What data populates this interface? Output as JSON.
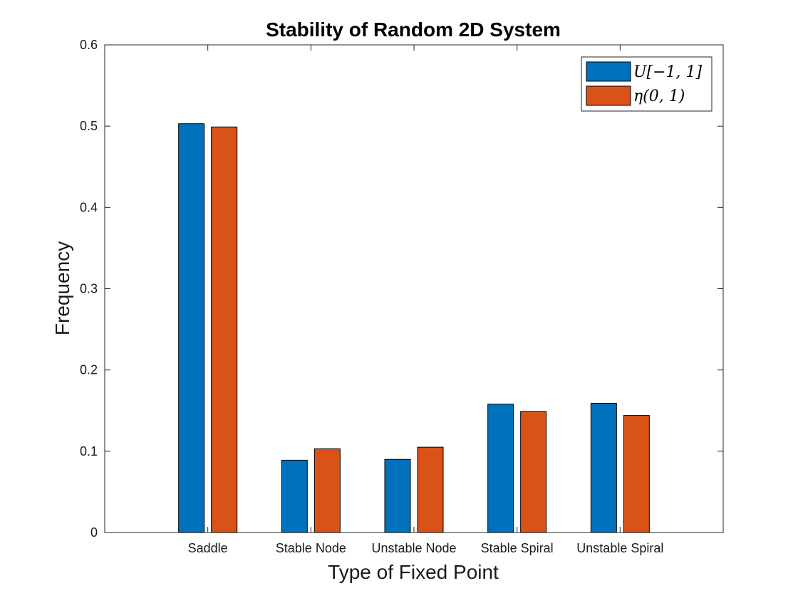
{
  "chart_data": {
    "type": "bar",
    "title": "Stability of Random 2D System",
    "xlabel": "Type of Fixed Point",
    "ylabel": "Frequency",
    "categories": [
      "Saddle",
      "Stable Node",
      "Unstable Node",
      "Stable Spiral",
      "Unstable Spiral"
    ],
    "series": [
      {
        "name": "U[−1, 1]",
        "color": "#0072BD",
        "values": [
          0.503,
          0.089,
          0.09,
          0.158,
          0.159
        ]
      },
      {
        "name": "η(0, 1)",
        "color": "#D95319",
        "values": [
          0.499,
          0.103,
          0.105,
          0.149,
          0.144
        ]
      }
    ],
    "ylim": [
      0,
      0.6
    ],
    "yticks": [
      "0",
      "0.1",
      "0.2",
      "0.3",
      "0.4",
      "0.5",
      "0.6"
    ],
    "grid": false,
    "legend_position": "top-right"
  }
}
